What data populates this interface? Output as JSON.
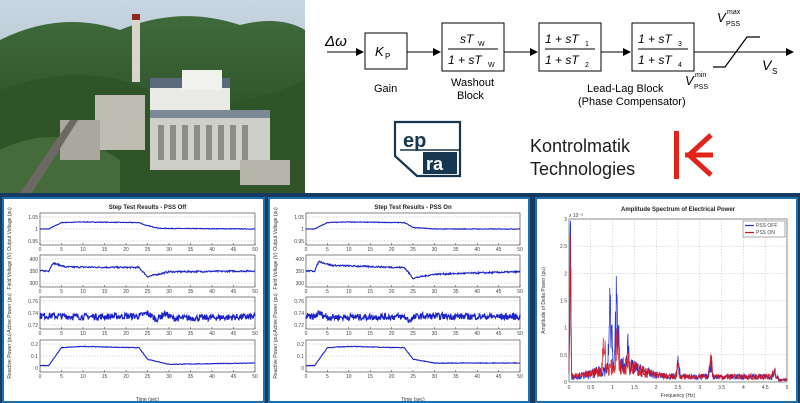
{
  "diagram": {
    "input": "Δω",
    "output": "V",
    "output_sub": "S",
    "gain_block": "K",
    "gain_sub": "P",
    "washout_num": "sT",
    "washout_num_sub": "W",
    "washout_den": "1 + sT",
    "washout_den_sub": "W",
    "lead1_num": "1 + sT",
    "lead1_num_sub": "1",
    "lead1_den": "1 + sT",
    "lead1_den_sub": "2",
    "lead2_num": "1 + sT",
    "lead2_num_sub": "3",
    "lead2_den": "1 + sT",
    "lead2_den_sub": "4",
    "vmax": "V",
    "vmax_sub": "PSS",
    "vmax_sup": "max",
    "vmin": "V",
    "vmin_sub": "PSS",
    "vmin_sup": "min",
    "label_gain": "Gain",
    "label_washout_1": "Washout",
    "label_washout_2": "Block",
    "label_leadlag_1": "Lead-Lag Block",
    "label_leadlag_2": "(Phase Compensator)"
  },
  "logos": {
    "epra_top": "ep",
    "epra_bottom": "ra",
    "kontrolmatik_1": "Kontrolmatik",
    "kontrolmatik_2": "Technologies"
  },
  "chart_data": [
    {
      "type": "line",
      "title": "Step Test Results - PSS Off",
      "xlabel": "Time (sec)",
      "xlim": [
        0,
        50
      ],
      "x_ticks": [
        "0",
        "5",
        "10",
        "15",
        "20",
        "25",
        "30",
        "35",
        "40",
        "45",
        "50"
      ],
      "subplots": [
        {
          "ylabel": "Output Voltage (pu)",
          "ylim": [
            0.95,
            1.05
          ],
          "y_ticks": [
            "1.05",
            "1",
            "0.95"
          ],
          "points": [
            [
              0,
              1.0
            ],
            [
              2,
              1.0
            ],
            [
              5,
              1.02
            ],
            [
              10,
              1.022
            ],
            [
              22,
              1.02
            ],
            [
              23,
              1.02
            ],
            [
              25,
              1.01
            ],
            [
              28,
              1.002
            ],
            [
              50,
              1.0
            ]
          ]
        },
        {
          "ylabel": "Field Voltage (V)",
          "ylim": [
            250,
            450
          ],
          "y_ticks": [
            "400",
            "350",
            "300"
          ],
          "points": [
            [
              0,
              350
            ],
            [
              2,
              350
            ],
            [
              3,
              400
            ],
            [
              6,
              375
            ],
            [
              22,
              372
            ],
            [
              23,
              372
            ],
            [
              25,
              315
            ],
            [
              30,
              345
            ],
            [
              50,
              350
            ]
          ]
        },
        {
          "ylabel": "Active Power (pu)",
          "ylim": [
            0.7,
            0.76
          ],
          "y_ticks": [
            "0.76",
            "0.74",
            "0.72"
          ],
          "points": [
            [
              0,
              0.725
            ],
            [
              10,
              0.723
            ],
            [
              20,
              0.724
            ],
            [
              23,
              0.724
            ],
            [
              25,
              0.73
            ],
            [
              27,
              0.718
            ],
            [
              29,
              0.729
            ],
            [
              31,
              0.72
            ],
            [
              50,
              0.723
            ]
          ]
        },
        {
          "ylabel": "Reactive Power (pu)",
          "ylim": [
            0,
            0.25
          ],
          "y_ticks": [
            "0.2",
            "0.1",
            "0"
          ],
          "points": [
            [
              0,
              0.05
            ],
            [
              2,
              0.05
            ],
            [
              5,
              0.19
            ],
            [
              10,
              0.2
            ],
            [
              22,
              0.19
            ],
            [
              23,
              0.19
            ],
            [
              25,
              0.1
            ],
            [
              30,
              0.06
            ],
            [
              50,
              0.07
            ]
          ]
        }
      ]
    },
    {
      "type": "line",
      "title": "Step Test Results - PSS On",
      "xlabel": "Time (sec)",
      "xlim": [
        0,
        50
      ],
      "x_ticks": [
        "0",
        "5",
        "10",
        "15",
        "20",
        "25",
        "30",
        "35",
        "40",
        "45",
        "50"
      ],
      "subplots": [
        {
          "ylabel": "Output Voltage (pu)",
          "ylim": [
            0.95,
            1.05
          ],
          "y_ticks": [
            "1.05",
            "1",
            "0.95"
          ],
          "points": [
            [
              0,
              1.0
            ],
            [
              2,
              1.0
            ],
            [
              5,
              1.02
            ],
            [
              10,
              1.022
            ],
            [
              22,
              1.02
            ],
            [
              23,
              1.02
            ],
            [
              25,
              1.005
            ],
            [
              30,
              1.0
            ],
            [
              50,
              1.0
            ]
          ]
        },
        {
          "ylabel": "Field Voltage (V)",
          "ylim": [
            250,
            450
          ],
          "y_ticks": [
            "400",
            "350",
            "300"
          ],
          "points": [
            [
              0,
              350
            ],
            [
              2,
              350
            ],
            [
              3,
              410
            ],
            [
              6,
              385
            ],
            [
              22,
              372
            ],
            [
              23,
              372
            ],
            [
              25,
              305
            ],
            [
              30,
              330
            ],
            [
              50,
              345
            ]
          ]
        },
        {
          "ylabel": "Active Power (pu)",
          "ylim": [
            0.7,
            0.76
          ],
          "y_ticks": [
            "0.76",
            "0.74",
            "0.72"
          ],
          "points": [
            [
              0,
              0.723
            ],
            [
              2,
              0.723
            ],
            [
              3,
              0.73
            ],
            [
              5,
              0.722
            ],
            [
              22,
              0.723
            ],
            [
              23,
              0.723
            ],
            [
              24,
              0.716
            ],
            [
              26,
              0.724
            ],
            [
              50,
              0.723
            ]
          ]
        },
        {
          "ylabel": "Reactive Power (pu)",
          "ylim": [
            0,
            0.25
          ],
          "y_ticks": [
            "0.2",
            "0.1",
            "0"
          ],
          "points": [
            [
              0,
              0.05
            ],
            [
              2,
              0.05
            ],
            [
              5,
              0.19
            ],
            [
              10,
              0.2
            ],
            [
              22,
              0.19
            ],
            [
              23,
              0.19
            ],
            [
              25,
              0.1
            ],
            [
              30,
              0.07
            ],
            [
              50,
              0.07
            ]
          ]
        }
      ]
    },
    {
      "type": "line",
      "title": "Amplitude Spectrum of Electrical Power",
      "xlabel": "Frequency (Hz)",
      "ylabel": "Amplitude of Delta Power (pu)",
      "xlim": [
        0,
        5
      ],
      "ylim": [
        0,
        3
      ],
      "y_scale_label": "x 10⁻³",
      "x_ticks": [
        "0",
        "0.5",
        "1",
        "1.5",
        "2",
        "2.5",
        "3",
        "3.5",
        "4",
        "4.5",
        "5"
      ],
      "y_ticks": [
        "3",
        "2.5",
        "2",
        "1.5",
        "1",
        "0.5",
        "0"
      ],
      "legend_placement": "top-right",
      "series": [
        {
          "name": "PSS OFF",
          "color": "#1a2fd6",
          "peaks": [
            [
              0.03,
              2.7
            ],
            [
              0.95,
              1.6
            ],
            [
              1.1,
              1.9
            ],
            [
              1.35,
              0.85
            ],
            [
              2.5,
              0.4
            ],
            [
              3.25,
              0.45
            ],
            [
              4.7,
              0.25
            ]
          ]
        },
        {
          "name": "PSS ON",
          "color": "#e01010",
          "peaks": [
            [
              0.03,
              2.65
            ],
            [
              0.8,
              0.9
            ],
            [
              1.1,
              0.95
            ],
            [
              1.35,
              0.65
            ],
            [
              2.5,
              0.35
            ],
            [
              3.25,
              0.5
            ],
            [
              4.7,
              0.3
            ]
          ]
        }
      ]
    }
  ]
}
